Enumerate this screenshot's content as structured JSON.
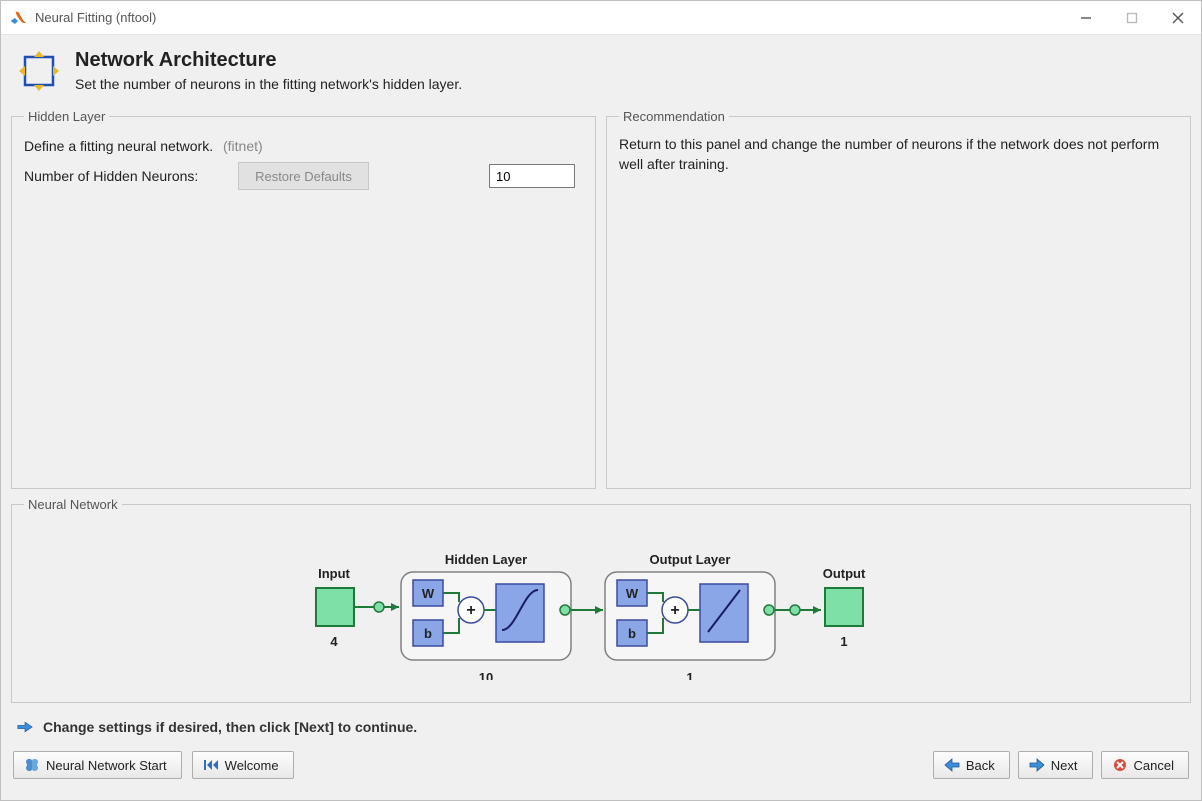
{
  "window": {
    "title": "Neural Fitting (nftool)"
  },
  "header": {
    "title": "Network Architecture",
    "subtitle": "Set the number of neurons in the fitting network's hidden layer."
  },
  "hidden_layer": {
    "legend": "Hidden Layer",
    "define_text": "Define a fitting neural network.",
    "func_name": "(fitnet)",
    "neurons_label": "Number of Hidden Neurons:",
    "neurons_value": "10",
    "restore_label": "Restore Defaults"
  },
  "recommendation": {
    "legend": "Recommendation",
    "text": "Return to this panel and change the number of neurons if the network does not perform well after training."
  },
  "nn_panel": {
    "legend": "Neural Network"
  },
  "diagram": {
    "input_label": "Input",
    "input_count": "4",
    "hidden_label": "Hidden Layer",
    "hidden_count": "10",
    "output_label": "Output Layer",
    "output_count": "1",
    "final_label": "Output",
    "block_labels": {
      "W": "W",
      "b": "b",
      "plus": "+"
    },
    "colors": {
      "input_fill": "#7fe0a7",
      "input_stroke": "#1f7a3a",
      "layer_fill": "#f6f6f6",
      "layer_stroke": "#808080",
      "block_fill": "#8aa6e6",
      "block_stroke": "#3a4aa0",
      "wire": "#1f7a3a",
      "text": "#222222"
    }
  },
  "hint": {
    "text": "Change settings  if desired, then click [Next] to continue."
  },
  "buttons": {
    "nn_start": "Neural Network Start",
    "welcome": "Welcome",
    "back": "Back",
    "next": "Next",
    "cancel": "Cancel"
  }
}
